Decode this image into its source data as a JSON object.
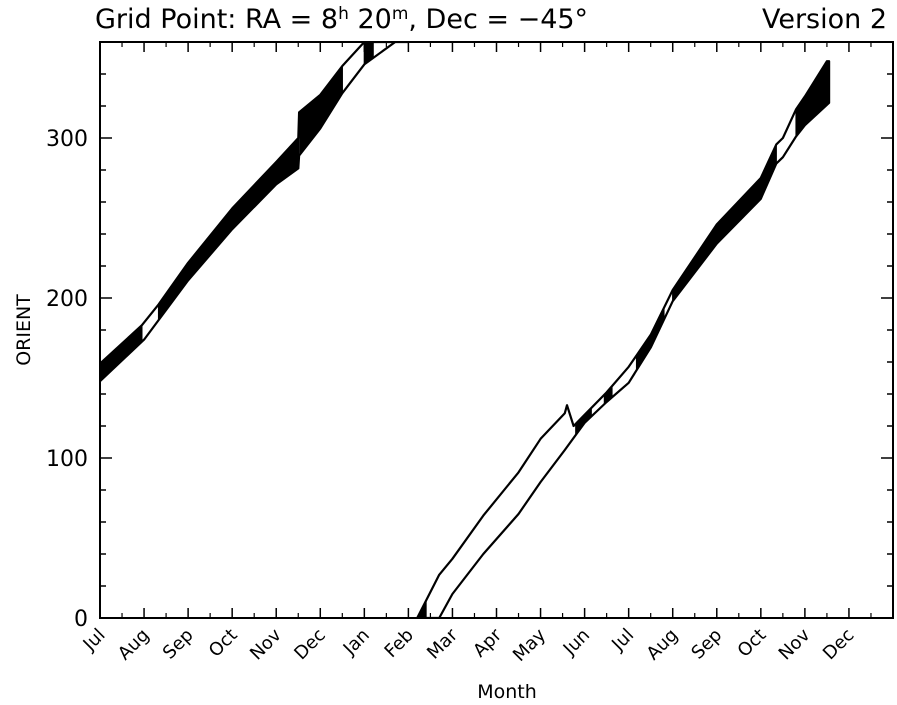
{
  "title": {
    "prefix": "Grid Point: RA = ",
    "ra_hours": "8",
    "ra_hours_unit": "h",
    "ra_minutes": " 20",
    "ra_minutes_unit": "m",
    "dec_text": ", Dec = −45°"
  },
  "version_label": "Version 2",
  "chart_data": {
    "type": "area",
    "xlabel": "Month",
    "ylabel": "ORIENT",
    "x_ticklabels": [
      "Jul",
      "Aug",
      "Sep",
      "Oct",
      "Nov",
      "Dec",
      "Jan",
      "Feb",
      "Mar",
      "Apr",
      "May",
      "Jun",
      "Jul",
      "Aug",
      "Sep",
      "Oct",
      "Nov",
      "Dec"
    ],
    "y_ticks": [
      0,
      100,
      200,
      300
    ],
    "ylim": [
      0,
      360
    ],
    "xlim": [
      0,
      18
    ],
    "grid": false,
    "series": [
      {
        "role": "year1-band",
        "polygon_xy": [
          [
            0.0,
            159
          ],
          [
            0.95,
            183
          ],
          [
            1.33,
            196
          ],
          [
            2.0,
            222
          ],
          [
            3.0,
            256
          ],
          [
            4.0,
            285
          ],
          [
            4.5,
            300
          ],
          [
            4.52,
            316
          ],
          [
            5.0,
            327
          ],
          [
            5.5,
            345
          ],
          [
            6.0,
            360
          ],
          [
            7.0,
            360
          ],
          [
            6.7,
            360
          ],
          [
            6.0,
            346
          ],
          [
            5.5,
            328
          ],
          [
            5.0,
            306
          ],
          [
            4.52,
            289
          ],
          [
            4.5,
            281
          ],
          [
            4.0,
            271
          ],
          [
            3.0,
            243
          ],
          [
            2.0,
            211
          ],
          [
            1.0,
            174
          ],
          [
            0.0,
            148
          ]
        ],
        "filled_intervals_x": [
          [
            0.0,
            0.95
          ],
          [
            1.33,
            4.52
          ],
          [
            4.52,
            5.5
          ],
          [
            6.0,
            6.2
          ]
        ],
        "hollow_intervals_x": [
          [
            0.95,
            1.33
          ],
          [
            5.5,
            6.0
          ],
          [
            6.2,
            7.0
          ]
        ]
      },
      {
        "role": "year2-band",
        "polygon_xy": [
          [
            7.2,
            0
          ],
          [
            7.7,
            27
          ],
          [
            8.0,
            37
          ],
          [
            8.7,
            64
          ],
          [
            9.5,
            91
          ],
          [
            10.0,
            112
          ],
          [
            10.55,
            128
          ],
          [
            10.6,
            133
          ],
          [
            10.75,
            120
          ],
          [
            11.0,
            127
          ],
          [
            11.5,
            141
          ],
          [
            12.0,
            157
          ],
          [
            12.5,
            177
          ],
          [
            13.0,
            205
          ],
          [
            14.0,
            246
          ],
          [
            15.0,
            275
          ],
          [
            15.35,
            296
          ],
          [
            15.5,
            300
          ],
          [
            15.8,
            318
          ],
          [
            16.0,
            326
          ],
          [
            16.5,
            348
          ],
          [
            16.55,
            348
          ],
          [
            16.55,
            322
          ],
          [
            16.0,
            308
          ],
          [
            15.8,
            301
          ],
          [
            15.5,
            288
          ],
          [
            15.35,
            284
          ],
          [
            15.0,
            262
          ],
          [
            14.0,
            234
          ],
          [
            13.0,
            198
          ],
          [
            12.5,
            169
          ],
          [
            12.0,
            147
          ],
          [
            11.5,
            135
          ],
          [
            11.0,
            122
          ],
          [
            10.55,
            105
          ],
          [
            10.0,
            85
          ],
          [
            9.5,
            65
          ],
          [
            8.7,
            40
          ],
          [
            8.0,
            15
          ],
          [
            7.7,
            0
          ]
        ],
        "filled_intervals_x": [
          [
            7.22,
            7.4
          ],
          [
            10.8,
            11.15
          ],
          [
            11.45,
            11.62
          ],
          [
            12.18,
            12.8
          ],
          [
            13.0,
            15.35
          ],
          [
            15.8,
            16.55
          ]
        ],
        "hollow_intervals_x": [
          [
            7.4,
            10.8
          ],
          [
            11.15,
            11.45
          ],
          [
            11.62,
            12.18
          ],
          [
            12.8,
            13.0
          ],
          [
            15.35,
            15.8
          ]
        ]
      }
    ]
  }
}
